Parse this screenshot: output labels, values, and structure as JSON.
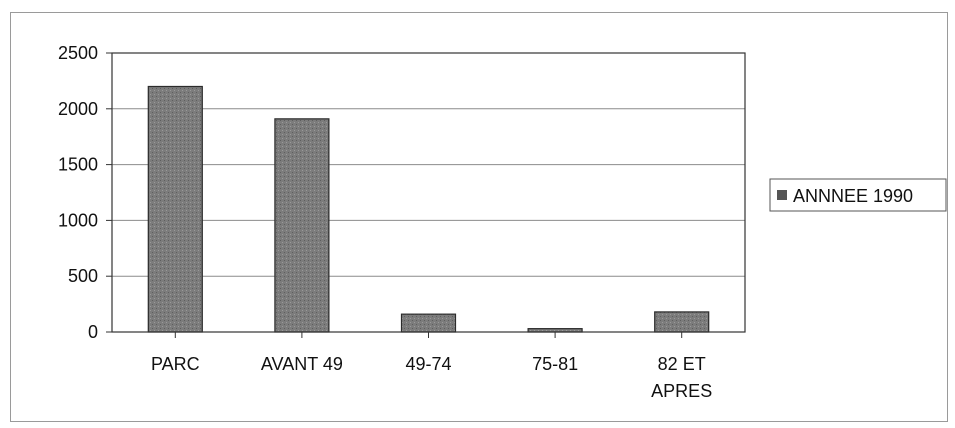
{
  "chart_data": {
    "type": "bar",
    "categories": [
      "PARC",
      "AVANT 49",
      "49-74",
      "75-81",
      "82 ET APRES"
    ],
    "category_lines": [
      [
        "PARC"
      ],
      [
        "AVANT 49"
      ],
      [
        "49-74"
      ],
      [
        "75-81"
      ],
      [
        "82 ET",
        "APRES"
      ]
    ],
    "series": [
      {
        "name": "ANNNEE 1990",
        "values": [
          2200,
          1910,
          160,
          30,
          180
        ]
      }
    ],
    "y_ticks": [
      "0",
      "500",
      "1000",
      "1500",
      "2000",
      "2500"
    ],
    "ylim": [
      0,
      2500
    ],
    "grid": true,
    "legend_position": "right",
    "colors": {
      "bar": "#7c7c7c",
      "bar_stroke": "#2b2b2b",
      "grid": "#8c8c8c",
      "axis": "#333333"
    }
  }
}
